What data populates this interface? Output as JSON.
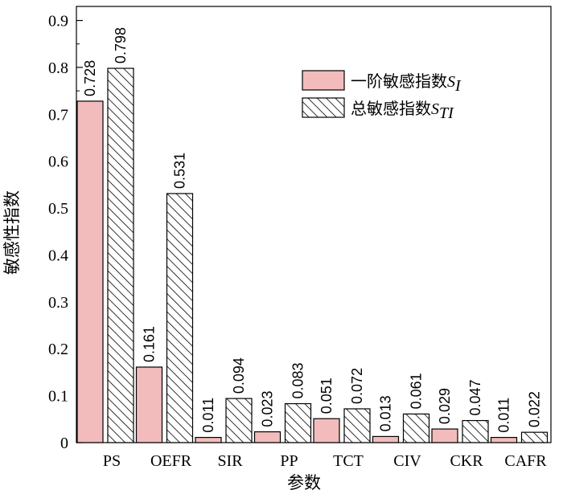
{
  "chart_data": {
    "type": "bar",
    "categories": [
      "PS",
      "OEFR",
      "SIR",
      "PP",
      "TCT",
      "CIV",
      "CKR",
      "CAFR"
    ],
    "series": [
      {
        "name": "一阶敏感指数S_I",
        "name_main": "一阶敏感指数",
        "name_symbol": "S",
        "name_sub": "I",
        "fill": "solid",
        "values": [
          0.728,
          0.161,
          0.011,
          0.023,
          0.051,
          0.013,
          0.029,
          0.011
        ],
        "labels": [
          "0.728",
          "0.161",
          "0.011",
          "0.023",
          "0.051",
          "0.013",
          "0.029",
          "0.011"
        ]
      },
      {
        "name": "总敏感指数S_TI",
        "name_main": "总敏感指数",
        "name_symbol": "S",
        "name_sub": "TI",
        "fill": "hatched",
        "values": [
          0.798,
          0.531,
          0.094,
          0.083,
          0.072,
          0.061,
          0.047,
          0.022
        ],
        "labels": [
          "0.798",
          "0.531",
          "0.094",
          "0.083",
          "0.072",
          "0.061",
          "0.047",
          "0.022"
        ]
      }
    ],
    "xlabel": "参数",
    "ylabel": "敏感性指数",
    "ylim": [
      0,
      0.93
    ],
    "yticks": [
      0,
      0.1,
      0.2,
      0.3,
      0.4,
      0.5,
      0.6,
      0.7,
      0.8,
      0.9
    ],
    "ytick_labels": [
      "0",
      "0.1",
      "0.2",
      "0.3",
      "0.4",
      "0.5",
      "0.6",
      "0.7",
      "0.8",
      "0.9"
    ],
    "grid": false,
    "legend_position": "top-right",
    "colors": {
      "solid": "#f2bcbc",
      "hatched": "#ffffff",
      "stroke": "#000000"
    }
  }
}
